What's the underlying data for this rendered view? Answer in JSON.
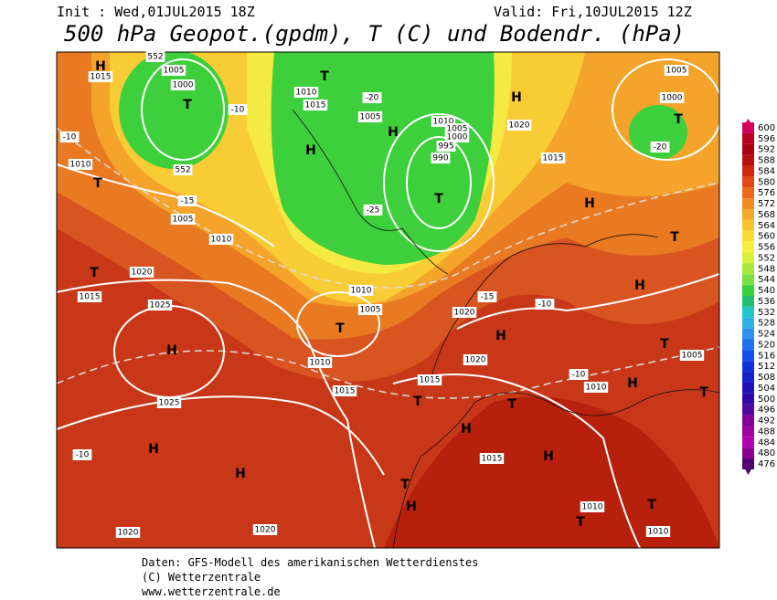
{
  "header": {
    "init": "Init : Wed,01JUL2015 18Z",
    "valid": "Valid: Fri,10JUL2015 12Z",
    "title": "500 hPa Geopot.(gpdm), T (C) und Bodendr. (hPa)"
  },
  "colorbar": {
    "levels": [
      600,
      596,
      592,
      588,
      584,
      580,
      576,
      572,
      568,
      564,
      560,
      556,
      552,
      548,
      544,
      540,
      536,
      532,
      528,
      524,
      520,
      516,
      512,
      508,
      504,
      500,
      496,
      492,
      488,
      484,
      480,
      476
    ],
    "colors": [
      "#d2005a",
      "#b80022",
      "#a8000c",
      "#b8100c",
      "#d02810",
      "#e04818",
      "#ea6a1c",
      "#f08a22",
      "#f5a82a",
      "#f8c431",
      "#fadc38",
      "#f6ee40",
      "#d8f03a",
      "#a8e83a",
      "#78e040",
      "#38d040",
      "#20c070",
      "#20c8c8",
      "#30b0e8",
      "#3090f0",
      "#2070f0",
      "#1050e8",
      "#1030d8",
      "#1820c8",
      "#2010b8",
      "#3008a8",
      "#5008a0",
      "#800098",
      "#a000a0",
      "#b000b0",
      "#880090",
      "#500070"
    ]
  },
  "map": {
    "labels": [
      "H",
      "1015",
      "552",
      "1005",
      "1000",
      "T",
      "552",
      "H",
      "T",
      "1010",
      "1015",
      "1005",
      "H",
      "1010",
      "1005",
      "1000",
      "995",
      "990",
      "T",
      "H",
      "1020",
      "1015",
      "1005",
      "1000",
      "T",
      "-20",
      "H",
      "T",
      "-10",
      "1010",
      "T",
      "1005",
      "1010",
      "T",
      "1020",
      "1015",
      "1025",
      "H",
      "1025",
      "H",
      "H",
      "1020",
      "1020",
      "T",
      "1010",
      "1005",
      "1010",
      "1015",
      "1015",
      "T",
      "H",
      "1020",
      "1020",
      "H",
      "1015",
      "T",
      "H",
      "T",
      "H",
      "1010",
      "T",
      "T",
      "1010",
      "1005",
      "T",
      "1010",
      "T",
      "H",
      "H",
      "-15",
      "-20",
      "-25",
      "-10",
      "-15",
      "-10",
      "-10",
      "-10"
    ]
  },
  "footer": [
    "Daten: GFS-Modell des amerikanischen Wetterdienstes",
    "(C) Wetterzentrale",
    "www.wetterzentrale.de"
  ]
}
